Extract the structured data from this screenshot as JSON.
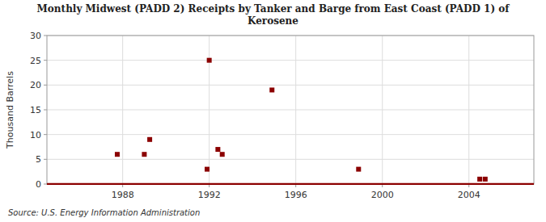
{
  "chart_data": {
    "type": "scatter",
    "title": "Monthly Midwest (PADD 2) Receipts by Tanker and Barge from East Coast (PADD 1) of\nKerosene",
    "ylabel": "Thousand Barrels",
    "source": "Source: U.S. Energy Information Administration",
    "series": [
      {
        "type": "scatter",
        "color": "#8b0000",
        "marker": "square",
        "x": [
          1987.75,
          1989.0,
          1989.25,
          1991.9,
          1992.0,
          1992.4,
          1992.6,
          1994.9,
          1998.9,
          2004.5,
          2004.75
        ],
        "values": [
          6,
          6,
          9,
          3,
          25,
          7,
          6,
          19,
          3,
          1,
          1
        ]
      },
      {
        "type": "line",
        "color": "#8b0000",
        "line_style": "solid",
        "x": [
          1984.5,
          2007.0
        ],
        "values": [
          0,
          0
        ]
      }
    ],
    "xlim": [
      1984.5,
      2007.0
    ],
    "ylim": [
      0,
      30
    ],
    "xticks": [
      1988,
      1992,
      1996,
      2000,
      2004
    ],
    "yticks": [
      0,
      5,
      10,
      15,
      20,
      25,
      30
    ],
    "grid": true
  }
}
